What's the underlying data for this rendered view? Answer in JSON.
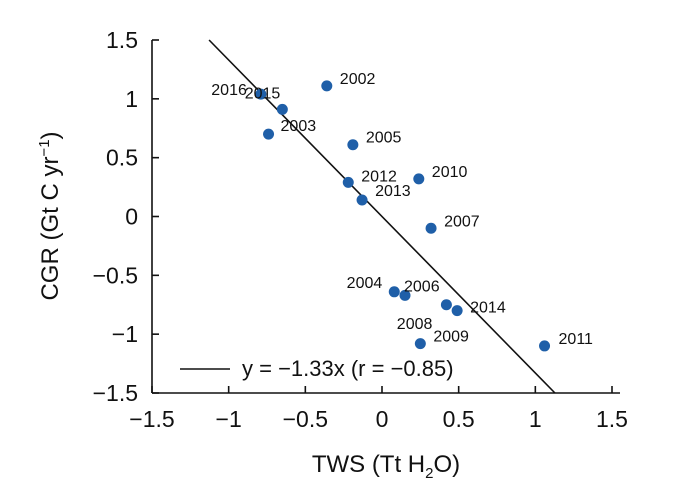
{
  "chart_data": {
    "type": "scatter",
    "xlabel": "TWS (Tt H2O)",
    "ylabel": "CGR (Gt C yr−1)",
    "xlim": [
      -1.5,
      1.5
    ],
    "ylim": [
      -1.5,
      1.5
    ],
    "xticks": [
      "−1.5",
      "−1",
      "−0.5",
      "0",
      "0.5",
      "1",
      "1.5"
    ],
    "yticks": [
      "1.5",
      "1",
      "0.5",
      "0",
      "−0.5",
      "−1",
      "−1.5"
    ],
    "grid": false,
    "point_color": "#1f5fa8",
    "points": [
      {
        "label": "2002",
        "x": -0.36,
        "y": 1.11
      },
      {
        "label": "2003",
        "x": -0.74,
        "y": 0.7
      },
      {
        "label": "2004",
        "x": 0.08,
        "y": -0.64
      },
      {
        "label": "2005",
        "x": -0.19,
        "y": 0.61
      },
      {
        "label": "2006",
        "x": 0.15,
        "y": -0.67
      },
      {
        "label": "2007",
        "x": 0.32,
        "y": -0.1
      },
      {
        "label": "2008",
        "x": 0.42,
        "y": -0.75
      },
      {
        "label": "2009",
        "x": 0.25,
        "y": -1.08
      },
      {
        "label": "2010",
        "x": 0.24,
        "y": 0.32
      },
      {
        "label": "2011",
        "x": 1.06,
        "y": -1.1
      },
      {
        "label": "2012",
        "x": -0.22,
        "y": 0.29
      },
      {
        "label": "2013",
        "x": -0.13,
        "y": 0.14
      },
      {
        "label": "2014",
        "x": 0.49,
        "y": -0.8
      },
      {
        "label": "2015",
        "x": -0.65,
        "y": 0.91
      },
      {
        "label": "2016",
        "x": -0.79,
        "y": 1.04
      }
    ],
    "fit_line": {
      "slope": -1.33,
      "intercept": 0,
      "label": "y = −1.33x (r = −0.85)"
    },
    "legend_position": "bottom-left"
  }
}
